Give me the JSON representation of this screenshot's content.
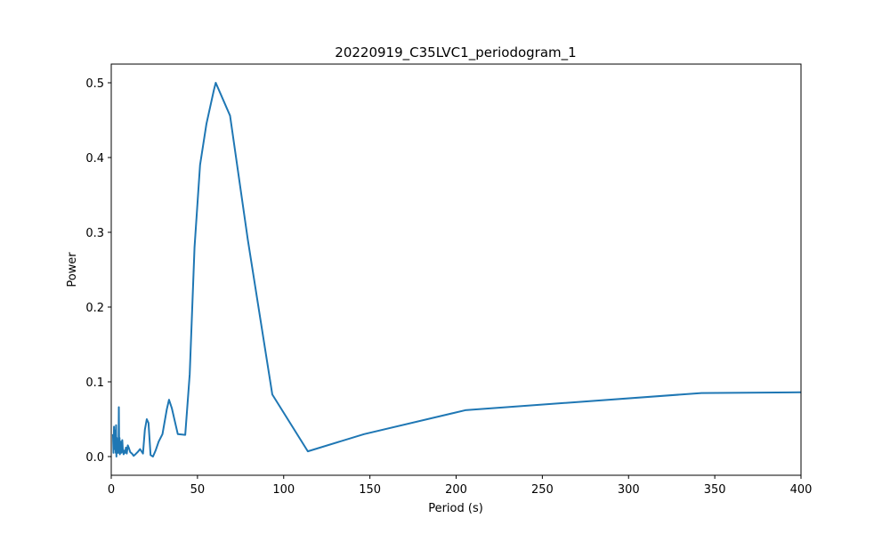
{
  "chart_data": {
    "type": "line",
    "title": "20220919_C35LVC1_periodogram_1",
    "xlabel": "Period (s)",
    "ylabel": "Power",
    "xlim": [
      0,
      400
    ],
    "ylim": [
      -0.025,
      0.525
    ],
    "xticks": [
      0,
      50,
      100,
      150,
      200,
      250,
      300,
      350,
      400
    ],
    "yticks": [
      0.0,
      0.1,
      0.2,
      0.3,
      0.4,
      0.5
    ],
    "xtick_labels": [
      "0",
      "50",
      "100",
      "150",
      "200",
      "250",
      "300",
      "350",
      "400"
    ],
    "ytick_labels": [
      "0.0",
      "0.1",
      "0.2",
      "0.3",
      "0.4",
      "0.5"
    ],
    "grid": false,
    "series": [
      {
        "color": "#1f77b4",
        "x": [
          1.0,
          1.3,
          1.6,
          1.9,
          2.1,
          2.4,
          2.6,
          2.8,
          3.0,
          3.2,
          3.4,
          3.6,
          3.8,
          4.0,
          4.2,
          4.4,
          4.6,
          4.8,
          5.0,
          5.2,
          5.5,
          5.8,
          6.1,
          6.4,
          6.8,
          7.2,
          7.6,
          8.0,
          8.5,
          9.0,
          9.6,
          10.3,
          11.0,
          12.0,
          13.0,
          14.0,
          15.3,
          16.7,
          18.4,
          19.5,
          20.6,
          21.6,
          22.8,
          24.2,
          25.7,
          27.5,
          29.7,
          32.2,
          33.5,
          35.1,
          38.6,
          42.9,
          45.5,
          48.3,
          51.5,
          55.2,
          59.5,
          60.6,
          68.9,
          79.2,
          93.4,
          114.0,
          146.6,
          205.3,
          342.3,
          400.0
        ],
        "y": [
          0.03,
          0.005,
          0.04,
          0.01,
          0.02,
          0.035,
          0.005,
          0.042,
          0.0,
          0.025,
          0.01,
          0.02,
          0.005,
          0.015,
          0.005,
          0.066,
          0.01,
          0.025,
          0.003,
          0.015,
          0.02,
          0.005,
          0.01,
          0.022,
          0.006,
          0.003,
          0.008,
          0.005,
          0.012,
          0.004,
          0.015,
          0.011,
          0.006,
          0.004,
          0.001,
          0.003,
          0.006,
          0.01,
          0.004,
          0.036,
          0.05,
          0.045,
          0.002,
          0.0,
          0.008,
          0.02,
          0.03,
          0.063,
          0.076,
          0.065,
          0.03,
          0.029,
          0.11,
          0.28,
          0.39,
          0.445,
          0.49,
          0.5,
          0.456,
          0.29,
          0.083,
          0.007,
          0.03,
          0.062,
          0.085,
          0.086
        ]
      }
    ]
  }
}
